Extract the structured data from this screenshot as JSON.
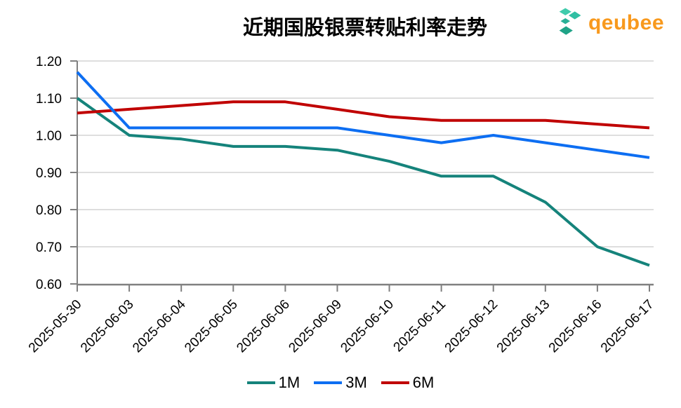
{
  "header": {
    "title": "近期国股银票转贴利率走势",
    "brand": "qeubee",
    "brand_color": "#F8991D",
    "logo_icon": "teal-cube-cluster-icon",
    "logo_icon_colors": [
      "#3FCBAC",
      "#2FBFA3",
      "#28B096",
      "#1FA387"
    ]
  },
  "colors": {
    "background": "#FFFFFF",
    "gridline": "#D9D9D9",
    "axis": "#808080",
    "tick_label": "#000000"
  },
  "chart_data": {
    "type": "line",
    "title": "近期国股银票转贴利率走势",
    "xlabel": "",
    "ylabel": "",
    "x": [
      "2025-05-30",
      "2025-06-03",
      "2025-06-04",
      "2025-06-05",
      "2025-06-06",
      "2025-06-09",
      "2025-06-10",
      "2025-06-11",
      "2025-06-12",
      "2025-06-13",
      "2025-06-16",
      "2025-06-17"
    ],
    "series": [
      {
        "name": "1M",
        "color": "#15837B",
        "values": [
          1.1,
          1.0,
          0.99,
          0.97,
          0.97,
          0.96,
          0.93,
          0.89,
          0.89,
          0.82,
          0.7,
          0.65
        ]
      },
      {
        "name": "3M",
        "color": "#0D6EF2",
        "values": [
          1.17,
          1.02,
          1.02,
          1.02,
          1.02,
          1.02,
          1.0,
          0.98,
          1.0,
          0.98,
          0.96,
          0.94
        ]
      },
      {
        "name": "6M",
        "color": "#C00000",
        "values": [
          1.06,
          1.07,
          1.08,
          1.09,
          1.09,
          1.07,
          1.05,
          1.04,
          1.04,
          1.04,
          1.03,
          1.02
        ]
      }
    ],
    "ylim": [
      0.6,
      1.2
    ],
    "yticks": [
      1.2,
      1.1,
      1.0,
      0.9,
      0.8,
      0.7,
      0.6
    ],
    "ytick_format": "2dp",
    "x_label_rotation_deg": 45,
    "grid": "horizontal",
    "legend_position": "bottom"
  }
}
